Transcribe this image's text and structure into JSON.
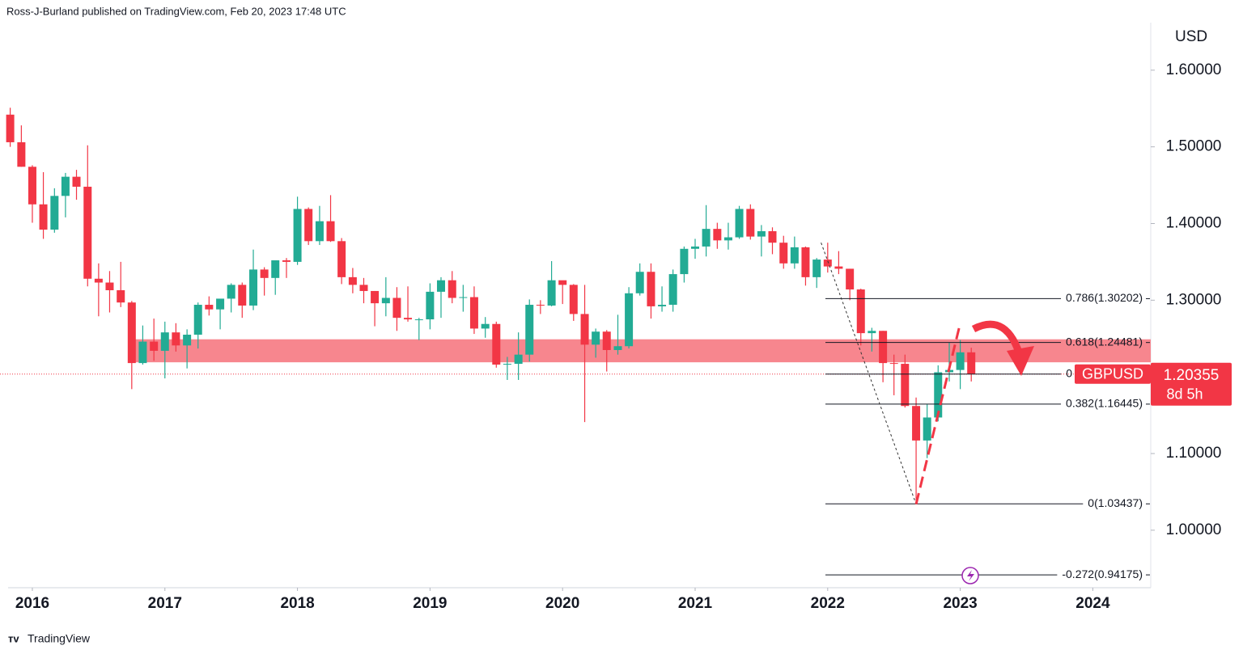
{
  "chart_data": {
    "type": "candlestick",
    "header": "Ross-J-Burland published on TradingView.com, Feb 20, 2023 17:48 UTC",
    "footer": "TradingView",
    "y_axis_label": "USD",
    "symbol": "GBPUSD",
    "last_price": 1.20355,
    "countdown": "8d 5h",
    "up_color": "#22ab94",
    "down_color": "#f23645",
    "xlim": [
      2015.756,
      2024.437
    ],
    "xticks": [
      2016,
      2017,
      2018,
      2019,
      2020,
      2021,
      2022,
      2023,
      2024
    ],
    "ylim": [
      0.925,
      1.662
    ],
    "yticks": [
      {
        "value": 1.0,
        "label": "1.00000"
      },
      {
        "value": 1.1,
        "label": "1.10000"
      },
      {
        "value": 1.2,
        "label": "1.20000"
      },
      {
        "value": 1.3,
        "label": "1.30000"
      },
      {
        "value": 1.4,
        "label": "1.40000"
      },
      {
        "value": 1.5,
        "label": "1.50000"
      },
      {
        "value": 1.6,
        "label": "1.60000"
      }
    ],
    "x": [
      2015.833,
      2015.917,
      2016,
      2016.083,
      2016.167,
      2016.25,
      2016.333,
      2016.417,
      2016.5,
      2016.583,
      2016.667,
      2016.75,
      2016.833,
      2016.917,
      2017,
      2017.083,
      2017.167,
      2017.25,
      2017.333,
      2017.417,
      2017.5,
      2017.583,
      2017.667,
      2017.75,
      2017.833,
      2017.917,
      2018,
      2018.083,
      2018.167,
      2018.25,
      2018.333,
      2018.417,
      2018.5,
      2018.583,
      2018.667,
      2018.75,
      2018.833,
      2018.917,
      2019,
      2019.083,
      2019.167,
      2019.25,
      2019.333,
      2019.417,
      2019.5,
      2019.583,
      2019.667,
      2019.75,
      2019.833,
      2019.917,
      2020,
      2020.083,
      2020.167,
      2020.25,
      2020.333,
      2020.417,
      2020.5,
      2020.583,
      2020.667,
      2020.75,
      2020.833,
      2020.917,
      2021,
      2021.083,
      2021.167,
      2021.25,
      2021.333,
      2021.417,
      2021.5,
      2021.583,
      2021.667,
      2021.75,
      2021.833,
      2021.917,
      2022,
      2022.083,
      2022.167,
      2022.25,
      2022.333,
      2022.417,
      2022.5,
      2022.583,
      2022.667,
      2022.75,
      2022.833,
      2022.917,
      2023,
      2023.083
    ],
    "open": [
      1.542,
      1.506,
      1.474,
      1.425,
      1.392,
      1.436,
      1.461,
      1.448,
      1.328,
      1.323,
      1.313,
      1.297,
      1.218,
      1.246,
      1.234,
      1.258,
      1.241,
      1.255,
      1.294,
      1.288,
      1.302,
      1.32,
      1.293,
      1.34,
      1.329,
      1.352,
      1.35,
      1.419,
      1.377,
      1.403,
      1.377,
      1.33,
      1.32,
      1.312,
      1.296,
      1.303,
      1.277,
      1.275,
      1.275,
      1.311,
      1.326,
      1.303,
      1.304,
      1.263,
      1.269,
      1.216,
      1.217,
      1.229,
      1.294,
      1.293,
      1.326,
      1.32,
      1.282,
      1.242,
      1.259,
      1.235,
      1.24,
      1.309,
      1.337,
      1.292,
      1.294,
      1.334,
      1.367,
      1.37,
      1.393,
      1.378,
      1.382,
      1.419,
      1.383,
      1.39,
      1.375,
      1.348,
      1.369,
      1.33,
      1.353,
      1.344,
      1.341,
      1.314,
      1.257,
      1.26,
      1.218,
      1.217,
      1.162,
      1.117,
      1.147,
      1.206,
      1.209,
      1.232
    ],
    "high": [
      1.551,
      1.528,
      1.476,
      1.467,
      1.446,
      1.466,
      1.47,
      1.502,
      1.348,
      1.338,
      1.35,
      1.299,
      1.267,
      1.276,
      1.272,
      1.27,
      1.262,
      1.297,
      1.305,
      1.301,
      1.322,
      1.323,
      1.366,
      1.343,
      1.351,
      1.355,
      1.435,
      1.421,
      1.423,
      1.437,
      1.381,
      1.342,
      1.329,
      1.312,
      1.33,
      1.317,
      1.318,
      1.277,
      1.322,
      1.33,
      1.338,
      1.32,
      1.318,
      1.278,
      1.272,
      1.226,
      1.258,
      1.301,
      1.3,
      1.351,
      1.325,
      1.321,
      1.32,
      1.263,
      1.261,
      1.281,
      1.317,
      1.348,
      1.348,
      1.318,
      1.34,
      1.37,
      1.38,
      1.424,
      1.401,
      1.401,
      1.423,
      1.425,
      1.398,
      1.395,
      1.384,
      1.383,
      1.37,
      1.355,
      1.375,
      1.364,
      1.341,
      1.315,
      1.264,
      1.26,
      1.229,
      1.229,
      1.173,
      1.164,
      1.215,
      1.245,
      1.248,
      1.238
    ],
    "low": [
      1.5,
      1.474,
      1.401,
      1.38,
      1.388,
      1.408,
      1.431,
      1.318,
      1.279,
      1.284,
      1.291,
      1.184,
      1.216,
      1.221,
      1.198,
      1.233,
      1.211,
      1.237,
      1.28,
      1.262,
      1.284,
      1.277,
      1.287,
      1.306,
      1.307,
      1.329,
      1.346,
      1.372,
      1.372,
      1.376,
      1.321,
      1.309,
      1.296,
      1.266,
      1.279,
      1.26,
      1.272,
      1.248,
      1.262,
      1.277,
      1.296,
      1.285,
      1.256,
      1.251,
      1.212,
      1.196,
      1.196,
      1.22,
      1.282,
      1.292,
      1.295,
      1.273,
      1.141,
      1.225,
      1.207,
      1.229,
      1.237,
      1.306,
      1.276,
      1.285,
      1.285,
      1.323,
      1.354,
      1.357,
      1.367,
      1.366,
      1.38,
      1.379,
      1.357,
      1.36,
      1.341,
      1.341,
      1.319,
      1.316,
      1.336,
      1.334,
      1.3,
      1.241,
      1.233,
      1.193,
      1.176,
      1.16,
      1.035,
      1.094,
      1.142,
      1.194,
      1.184,
      1.194
    ],
    "close": [
      1.506,
      1.474,
      1.425,
      1.392,
      1.436,
      1.461,
      1.448,
      1.328,
      1.323,
      1.313,
      1.297,
      1.218,
      1.246,
      1.234,
      1.258,
      1.241,
      1.255,
      1.294,
      1.288,
      1.302,
      1.32,
      1.293,
      1.34,
      1.329,
      1.352,
      1.35,
      1.419,
      1.377,
      1.403,
      1.377,
      1.33,
      1.32,
      1.312,
      1.296,
      1.303,
      1.277,
      1.275,
      1.275,
      1.311,
      1.326,
      1.303,
      1.304,
      1.263,
      1.269,
      1.216,
      1.217,
      1.229,
      1.294,
      1.293,
      1.326,
      1.32,
      1.282,
      1.242,
      1.259,
      1.235,
      1.24,
      1.309,
      1.337,
      1.292,
      1.294,
      1.334,
      1.367,
      1.37,
      1.393,
      1.378,
      1.382,
      1.419,
      1.383,
      1.39,
      1.375,
      1.348,
      1.369,
      1.33,
      1.353,
      1.344,
      1.341,
      1.314,
      1.257,
      1.26,
      1.218,
      1.217,
      1.162,
      1.117,
      1.147,
      1.206,
      1.209,
      1.232,
      1.204
    ],
    "zone": {
      "low": 1.219,
      "high": 1.249,
      "color": "#f7868e"
    },
    "fib_levels": [
      {
        "label": "0.786(1.30202)",
        "value": 1.30202
      },
      {
        "label": "0.618(1.24481)",
        "value": 1.24481
      },
      {
        "label": "0",
        "value": 1.20355
      },
      {
        "label": "0.382(1.16445)",
        "value": 1.16445
      },
      {
        "label": "0(1.03437)",
        "value": 1.03437
      },
      {
        "label": "-0.272(0.94175)",
        "value": 0.94175
      }
    ],
    "trend_lines": [
      {
        "x": [
          2021.95,
          2022.667
        ],
        "y": [
          1.375,
          1.034
        ],
        "color": "#333333"
      },
      {
        "x": [
          2022.667,
          2023.0
        ],
        "y": [
          1.034,
          1.27
        ],
        "color": "#f23645"
      }
    ]
  }
}
